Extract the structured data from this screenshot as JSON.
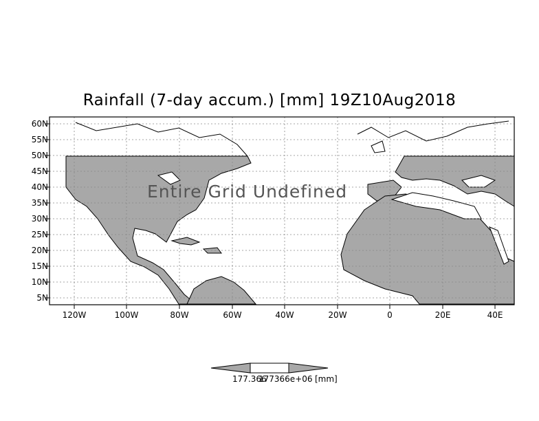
{
  "title": "Rainfall (7-day accum.) [mm] 19Z10Aug2018",
  "message": "Entire Grid Undefined",
  "lat_labels": [
    "60N",
    "55N",
    "50N",
    "45N",
    "40N",
    "35N",
    "30N",
    "25N",
    "20N",
    "15N",
    "10N",
    "5N"
  ],
  "lon_labels": [
    "120W",
    "100W",
    "80W",
    "60W",
    "40W",
    "20W",
    "0",
    "20E",
    "40E"
  ],
  "colorbar": {
    "label_left": "177.366",
    "label_mid": "177366e+06",
    "label_unit": "[mm]"
  },
  "colors": {
    "land": "#a8a8a8",
    "ocean": "#ffffff",
    "grid": "#888888"
  }
}
